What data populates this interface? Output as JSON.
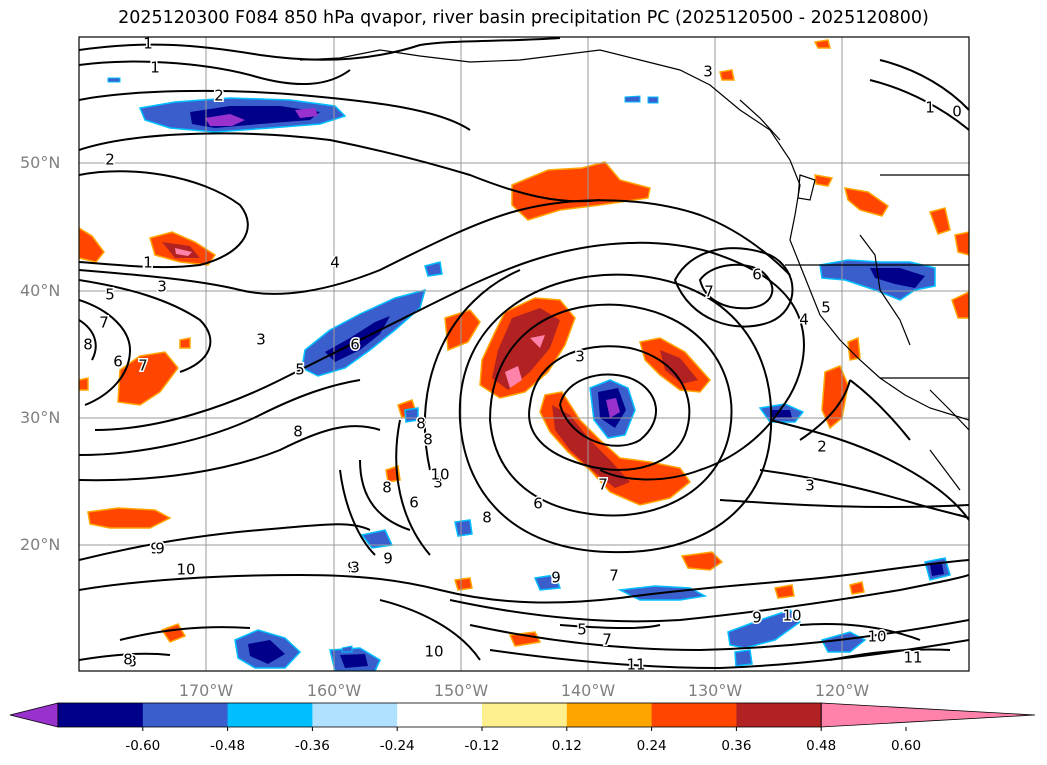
{
  "title": "2025120300 F084 850 hPa qvapor, river basin precipitation PC (2025120500 - 2025120800)",
  "lat_labels": [
    "50°N",
    "40°N",
    "30°N",
    "20°N"
  ],
  "lon_labels": [
    "170°W",
    "160°W",
    "150°W",
    "140°W",
    "130°W",
    "120°W"
  ],
  "colorbar": {
    "colors": [
      "#9932cc",
      "#00008b",
      "#3a5fcd",
      "#00bfff",
      "#b0e2ff",
      "#ffffff",
      "#fff08f",
      "#ffa500",
      "#ff4500",
      "#b22222",
      "#ff82ab"
    ],
    "tick_labels": [
      "-0.60",
      "-0.48",
      "-0.36",
      "-0.24",
      "-0.12",
      "0.12",
      "0.24",
      "0.36",
      "0.48",
      "0.60"
    ]
  },
  "contour_labels": [
    "1",
    "1",
    "2",
    "2",
    "3",
    "1",
    "0",
    "1",
    "4",
    "1",
    "3",
    "5",
    "7",
    "8",
    "6",
    "7",
    "3",
    "5",
    "6",
    "8",
    "8",
    "3",
    "6",
    "7",
    "7",
    "6",
    "8",
    "6",
    "8",
    "3",
    "4",
    "5",
    "8",
    "2",
    "3",
    "9",
    "10",
    "9",
    "9",
    "9",
    "7",
    "5",
    "7",
    "9",
    "10",
    "10",
    "11",
    "10",
    "11",
    "8",
    "10",
    "3",
    "9",
    "8"
  ]
}
